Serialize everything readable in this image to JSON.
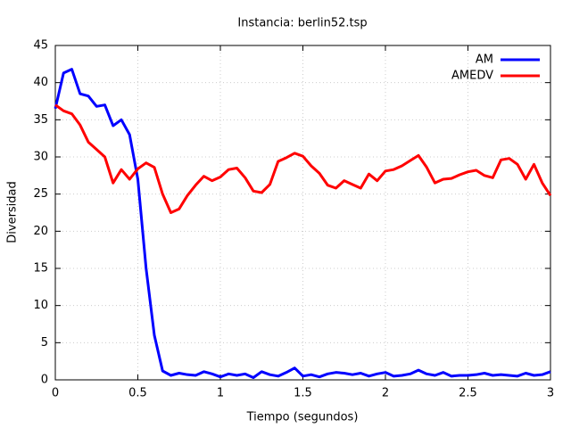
{
  "chart_data": {
    "type": "line",
    "title": "Instancia: berlin52.tsp",
    "xlabel": "Tiempo (segundos)",
    "ylabel": "Diversidad",
    "x": [
      0,
      0.05,
      0.1,
      0.15,
      0.2,
      0.25,
      0.3,
      0.35,
      0.4,
      0.45,
      0.5,
      0.55,
      0.6,
      0.65,
      0.7,
      0.75,
      0.8,
      0.85,
      0.9,
      0.95,
      1.0,
      1.05,
      1.1,
      1.15,
      1.2,
      1.25,
      1.3,
      1.35,
      1.4,
      1.45,
      1.5,
      1.55,
      1.6,
      1.65,
      1.7,
      1.75,
      1.8,
      1.85,
      1.9,
      1.95,
      2.0,
      2.05,
      2.1,
      2.15,
      2.2,
      2.25,
      2.3,
      2.35,
      2.4,
      2.45,
      2.5,
      2.55,
      2.6,
      2.65,
      2.7,
      2.75,
      2.8,
      2.85,
      2.9,
      2.95,
      3.0
    ],
    "series": [
      {
        "name": "AM",
        "color": "#0000ff",
        "values": [
          36.5,
          41.3,
          41.8,
          38.5,
          38.2,
          36.8,
          37,
          34.2,
          35,
          33,
          27,
          15,
          6,
          1.2,
          0.6,
          0.9,
          0.7,
          0.6,
          1.1,
          0.8,
          0.4,
          0.8,
          0.6,
          0.8,
          0.3,
          1.1,
          0.7,
          0.5,
          1.0,
          1.6,
          0.5,
          0.7,
          0.4,
          0.8,
          1.0,
          0.9,
          0.7,
          0.9,
          0.5,
          0.8,
          1.0,
          0.5,
          0.6,
          0.8,
          1.3,
          0.8,
          0.6,
          1.0,
          0.5,
          0.6,
          0.6,
          0.7,
          0.9,
          0.6,
          0.7,
          0.6,
          0.5,
          0.9,
          0.6,
          0.7,
          1.1
        ]
      },
      {
        "name": "AMEDV",
        "color": "#ff0000",
        "values": [
          37,
          36.2,
          35.8,
          34.3,
          32,
          31,
          30,
          26.5,
          28.3,
          27,
          28.4,
          29.2,
          28.6,
          25,
          22.5,
          23,
          24.8,
          26.2,
          27.4,
          26.8,
          27.3,
          28.3,
          28.5,
          27.2,
          25.4,
          25.2,
          26.3,
          29.4,
          29.9,
          30.5,
          30.1,
          28.8,
          27.8,
          26.2,
          25.8,
          26.8,
          26.3,
          25.8,
          27.7,
          26.8,
          28.1,
          28.3,
          28.8,
          29.5,
          30.2,
          28.6,
          26.5,
          27,
          27.1,
          27.6,
          28,
          28.2,
          27.5,
          27.2,
          29.6,
          29.8,
          29,
          27,
          29,
          26.5,
          24.8
        ]
      }
    ],
    "xlim": [
      0,
      3
    ],
    "xticks": [
      0,
      0.5,
      1,
      1.5,
      2,
      2.5,
      3
    ],
    "ylim": [
      0,
      45
    ],
    "yticks": [
      0,
      5,
      10,
      15,
      20,
      25,
      30,
      35,
      40,
      45
    ],
    "grid": true,
    "legend": "top-right"
  }
}
